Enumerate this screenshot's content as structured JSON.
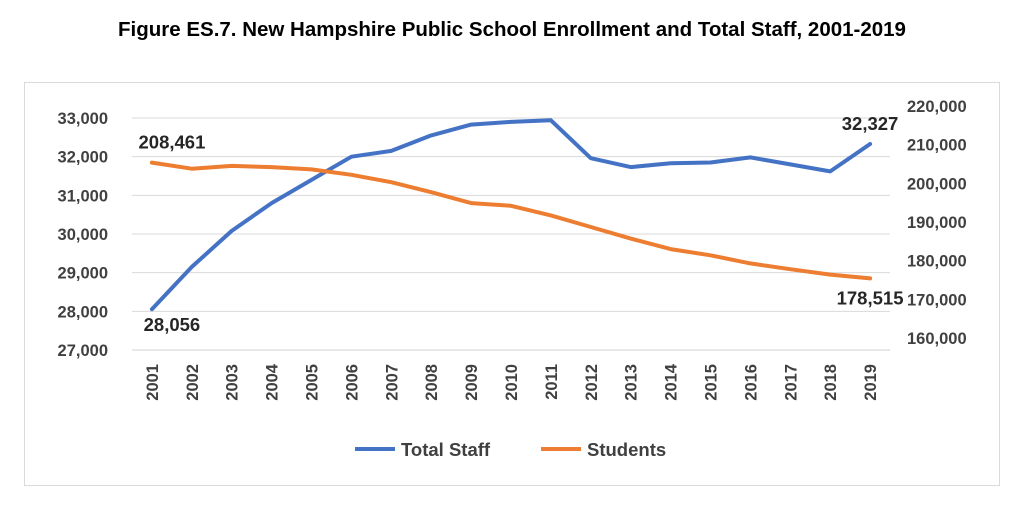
{
  "title": "Figure ES.7.  New Hampshire Public School Enrollment and Total Staff, 2001-2019",
  "colors": {
    "total_staff": "#4472c4",
    "students": "#ed7d31",
    "grid": "#d9d9d9",
    "text": "#404040"
  },
  "chart_data": {
    "type": "line",
    "title": "Figure ES.7.  New Hampshire Public School Enrollment and Total Staff, 2001-2019",
    "xlabel": "",
    "ylabel_left": "",
    "ylabel_right": "",
    "grid": true,
    "legend_position": "bottom",
    "categories": [
      "2001",
      "2002",
      "2003",
      "2004",
      "2005",
      "2006",
      "2007",
      "2008",
      "2009",
      "2010",
      "2011",
      "2012",
      "2013",
      "2014",
      "2015",
      "2016",
      "2017",
      "2018",
      "2019"
    ],
    "y_left": {
      "min": 27000,
      "max": 33000,
      "ticks": [
        "27,000",
        "28,000",
        "29,000",
        "30,000",
        "31,000",
        "32,000",
        "33,000"
      ]
    },
    "y_right": {
      "min": 160000,
      "max": 220000,
      "ticks": [
        "160,000",
        "170,000",
        "180,000",
        "190,000",
        "200,000",
        "210,000",
        "220,000"
      ]
    },
    "series": [
      {
        "name": "Total Staff",
        "axis": "left",
        "color": "#4472c4",
        "values": [
          28056,
          29150,
          30080,
          30800,
          31400,
          32000,
          32150,
          32550,
          32830,
          32900,
          32940,
          31960,
          31730,
          31830,
          31850,
          31980,
          31800,
          31620,
          32327
        ]
      },
      {
        "name": "Students",
        "axis": "right",
        "color": "#ed7d31",
        "values": [
          208461,
          206900,
          207600,
          207300,
          206700,
          205300,
          203400,
          200800,
          198000,
          197300,
          194800,
          191800,
          188800,
          186100,
          184500,
          182400,
          180900,
          179500,
          178515
        ]
      }
    ],
    "data_labels": [
      {
        "text": "208,461",
        "series": "Students",
        "index": 0
      },
      {
        "text": "28,056",
        "series": "Total Staff",
        "index": 0
      },
      {
        "text": "32,327",
        "series": "Total Staff",
        "index": 18
      },
      {
        "text": "178,515",
        "series": "Students",
        "index": 18
      }
    ]
  }
}
